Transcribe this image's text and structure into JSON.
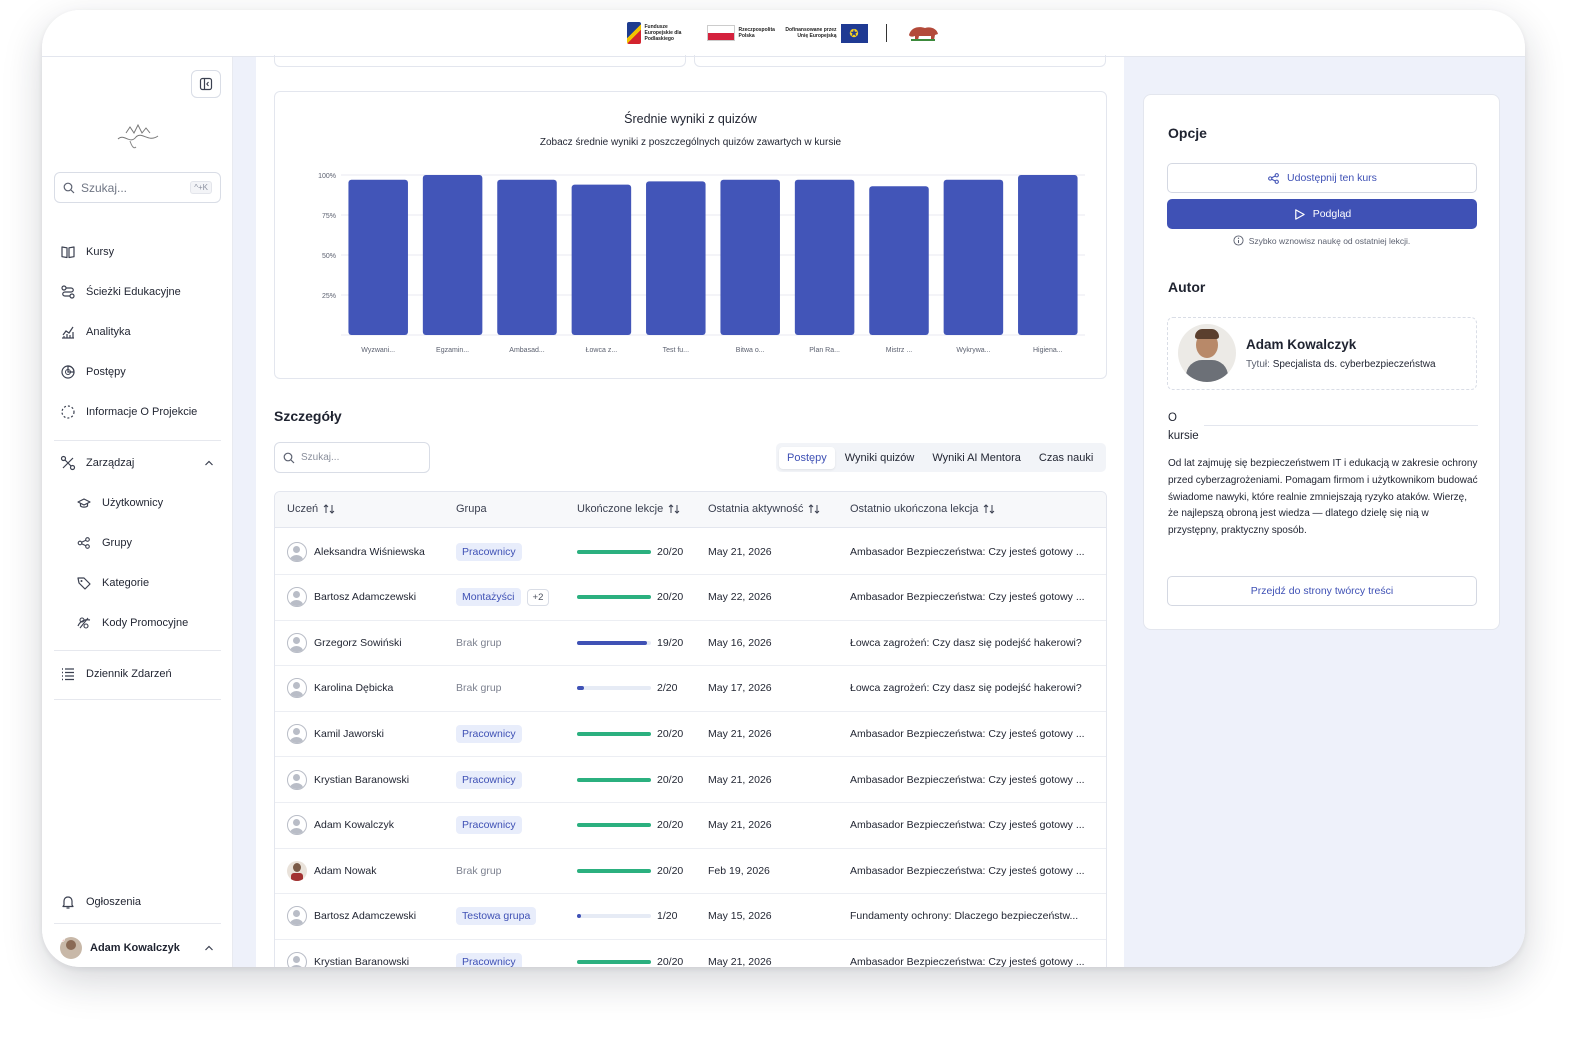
{
  "topbar": {
    "logos": {
      "fe_text": "Fundusze Europejskie dla Podlaskiego",
      "rp_text": "Rzeczpospolita Polska",
      "eu_text": "Dofinansowane przez Unię Europejską"
    }
  },
  "sidebar": {
    "search_placeholder": "Szukaj...",
    "search_shortcut": "^+K",
    "items": [
      {
        "label": "Kursy",
        "icon": "book-icon"
      },
      {
        "label": "Ścieżki Edukacyjne",
        "icon": "route-icon"
      },
      {
        "label": "Analityka",
        "icon": "chart-icon"
      },
      {
        "label": "Postępy",
        "icon": "progress-icon"
      },
      {
        "label": "Informacje O Projekcie",
        "icon": "info-dotted-icon"
      }
    ],
    "manage": {
      "label": "Zarządzaj",
      "children": [
        {
          "label": "Użytkownicy",
          "icon": "users-icon"
        },
        {
          "label": "Grupy",
          "icon": "share-icon"
        },
        {
          "label": "Kategorie",
          "icon": "tag-icon"
        },
        {
          "label": "Kody Promocyjne",
          "icon": "promo-icon"
        }
      ]
    },
    "events": {
      "label": "Dziennik Zdarzeń",
      "icon": "list-icon"
    },
    "announcements": {
      "label": "Ogłoszenia",
      "icon": "bell-icon"
    },
    "user": {
      "name": "Adam Kowalczyk"
    }
  },
  "chart_data": {
    "type": "bar",
    "title": "Średnie wyniki z quizów",
    "subtitle": "Zobacz średnie wyniki z poszczególnych quizów zawartych w kursie",
    "categories": [
      "Wyzwani...",
      "Egzamin...",
      "Ambasad...",
      "Łowca z...",
      "Test fu...",
      "Bitwa o...",
      "Plan Ra...",
      "Mistrz ...",
      "Wykrywa...",
      "Higiena..."
    ],
    "values": [
      97,
      100,
      97,
      94,
      96,
      97,
      97,
      93,
      97,
      100
    ],
    "yticks": [
      "25%",
      "50%",
      "75%",
      "100%"
    ],
    "ylim": [
      0,
      100
    ],
    "color": "#4255b8"
  },
  "details": {
    "title": "Szczegóły",
    "search_placeholder": "Szukaj...",
    "tabs": [
      "Postępy",
      "Wyniki quizów",
      "Wyniki AI Mentora",
      "Czas nauki"
    ],
    "columns": [
      "Uczeń",
      "Grupa",
      "Ukończone lekcje",
      "Ostatnia aktywność",
      "Ostatnio ukończona lekcja"
    ],
    "rows": [
      {
        "name": "Aleksandra Wiśniewska",
        "group": "Pracownicy",
        "extra": "",
        "done": 20,
        "total": 20,
        "progress": "20/20",
        "date": "May 21, 2026",
        "lesson": "Ambasador Bezpieczeństwa: Czy jesteś gotowy ..."
      },
      {
        "name": "Bartosz Adamczewski",
        "group": "Montażyści",
        "extra": "+2",
        "done": 20,
        "total": 20,
        "progress": "20/20",
        "date": "May 22, 2026",
        "lesson": "Ambasador Bezpieczeństwa: Czy jesteś gotowy ..."
      },
      {
        "name": "Grzegorz Sowiński",
        "group": "Brak grup",
        "extra": "",
        "done": 19,
        "total": 20,
        "progress": "19/20",
        "date": "May 16, 2026",
        "lesson": "Łowca zagrożeń: Czy dasz się podejść hakerowi?"
      },
      {
        "name": "Karolina Dębicka",
        "group": "Brak grup",
        "extra": "",
        "done": 2,
        "total": 20,
        "progress": "2/20",
        "date": "May 17, 2026",
        "lesson": "Łowca zagrożeń: Czy dasz się podejść hakerowi?"
      },
      {
        "name": "Kamil Jaworski",
        "group": "Pracownicy",
        "extra": "",
        "done": 20,
        "total": 20,
        "progress": "20/20",
        "date": "May 21, 2026",
        "lesson": "Ambasador Bezpieczeństwa: Czy jesteś gotowy ..."
      },
      {
        "name": "Krystian Baranowski",
        "group": "Pracownicy",
        "extra": "",
        "done": 20,
        "total": 20,
        "progress": "20/20",
        "date": "May 21, 2026",
        "lesson": "Ambasador Bezpieczeństwa: Czy jesteś gotowy ..."
      },
      {
        "name": "Adam Kowalczyk",
        "group": "Pracownicy",
        "extra": "",
        "done": 20,
        "total": 20,
        "progress": "20/20",
        "date": "May 21, 2026",
        "lesson": "Ambasador Bezpieczeństwa: Czy jesteś gotowy ..."
      },
      {
        "name": "Adam Nowak",
        "group": "Brak grup",
        "extra": "",
        "done": 20,
        "total": 20,
        "progress": "20/20",
        "date": "Feb 19, 2026",
        "lesson": "Ambasador Bezpieczeństwa: Czy jesteś gotowy ...",
        "photo": true
      },
      {
        "name": "Bartosz Adamczewski",
        "group": "Testowa grupa",
        "extra": "",
        "done": 1,
        "total": 20,
        "progress": "1/20",
        "date": "May 15, 2026",
        "lesson": "Fundamenty ochrony: Dlaczego bezpieczeństw..."
      },
      {
        "name": "Krystian Baranowski",
        "group": "Pracownicy",
        "extra": "",
        "done": 20,
        "total": 20,
        "progress": "20/20",
        "date": "May 21, 2026",
        "lesson": "Ambasador Bezpieczeństwa: Czy jesteś gotowy ..."
      }
    ]
  },
  "options": {
    "title": "Opcje",
    "share_label": "Udostępnij ten kurs",
    "preview_label": "Podgląd",
    "hint": "Szybko wznowisz naukę od ostatniej lekcji.",
    "author_heading": "Autor",
    "author_name": "Adam Kowalczyk",
    "author_title_label": "Tytuł:",
    "author_title_value": "Specjalista ds. cyberbezpieczeństwa",
    "about_label": "O kursie",
    "about_text": "Od lat zajmuję się bezpieczeństwem IT i edukacją w zakresie ochrony przed cyberzagrożeniami. Pomagam firmom i użytkownikom budować świadome nawyki, które realnie zmniejszają ryzyko ataków. Wierzę, że najlepszą obroną jest wiedza — dlatego dzielę się nią w przystępny, praktyczny sposób.",
    "creator_link": "Przejdź do strony twórcy treści"
  },
  "colors": {
    "primary": "#3f51b5",
    "bar": "#4255b8",
    "progress_full": "#2bb07f",
    "progress_partial": "#3f51b5",
    "badge_bg": "#e8edfb"
  }
}
